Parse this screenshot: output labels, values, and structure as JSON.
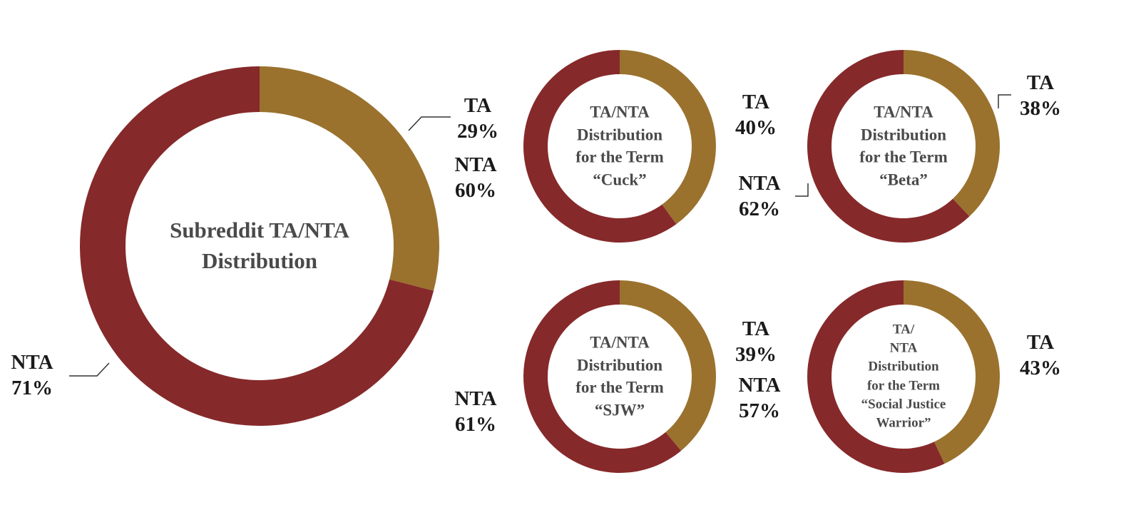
{
  "colors": {
    "ta": "#9a722e",
    "nta": "#86292a"
  },
  "chart_data": [
    {
      "type": "pie",
      "title": "Subreddit TA/NTA\nDistribution",
      "slices": [
        {
          "name": "TA",
          "value": 29,
          "display": "29%"
        },
        {
          "name": "NTA",
          "value": 71,
          "display": "71%"
        }
      ]
    },
    {
      "type": "pie",
      "title": "TA/NTA\nDistribution\nfor the Term\n“Cuck”",
      "slices": [
        {
          "name": "TA",
          "value": 40,
          "display": "40%"
        },
        {
          "name": "NTA",
          "value": 60,
          "display": "60%"
        }
      ]
    },
    {
      "type": "pie",
      "title": "TA/NTA\nDistribution\nfor the Term\n“Beta”",
      "slices": [
        {
          "name": "TA",
          "value": 38,
          "display": "38%"
        },
        {
          "name": "NTA",
          "value": 62,
          "display": "62%"
        }
      ]
    },
    {
      "type": "pie",
      "title": "TA/NTA\nDistribution\nfor the Term\n“SJW”",
      "slices": [
        {
          "name": "TA",
          "value": 39,
          "display": "39%"
        },
        {
          "name": "NTA",
          "value": 61,
          "display": "61%"
        }
      ]
    },
    {
      "type": "pie",
      "title": "TA/\nNTA\nDistribution\nfor the Term\n“Social Justice\nWarrior”",
      "slices": [
        {
          "name": "TA",
          "value": 43,
          "display": "43%"
        },
        {
          "name": "NTA",
          "value": 57,
          "display": "57%"
        }
      ]
    }
  ]
}
